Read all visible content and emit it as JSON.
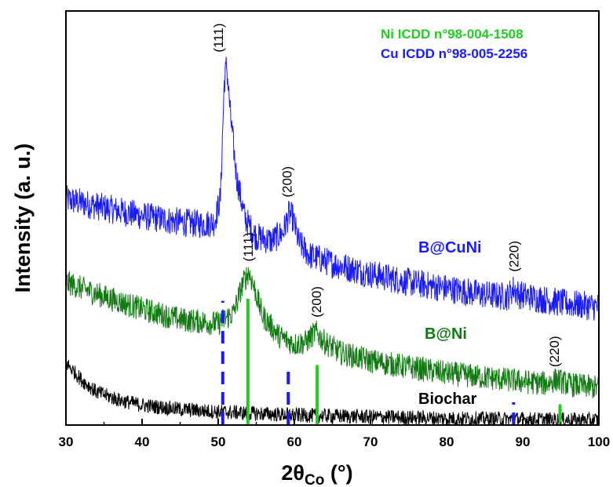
{
  "chart_data": {
    "type": "line",
    "xlabel_main": "2θ",
    "xlabel_sub": "Co",
    "xlabel_unit": " (°)",
    "ylabel": "Intensity (a. u.)",
    "xlim": [
      30,
      100
    ],
    "ylim": [
      0,
      1
    ],
    "x_ticks": [
      30,
      40,
      50,
      60,
      70,
      80,
      90,
      100
    ],
    "yticks_shown": false,
    "legend": [
      {
        "label": "Ni ICDD n°98-004-1508",
        "color": "#22cc22"
      },
      {
        "label": "Cu ICDD n°98-005-2256",
        "color": "#1a1aff"
      }
    ],
    "series": [
      {
        "name": "B@CuNi",
        "color": "#1a1aff",
        "noise": 0.035,
        "points": [
          [
            30,
            0.545
          ],
          [
            35,
            0.525
          ],
          [
            40,
            0.505
          ],
          [
            45,
            0.49
          ],
          [
            48,
            0.485
          ],
          [
            49.5,
            0.49
          ],
          [
            50.3,
            0.55
          ],
          [
            50.8,
            0.83
          ],
          [
            51.1,
            0.87
          ],
          [
            51.6,
            0.75
          ],
          [
            52.4,
            0.6
          ],
          [
            53.5,
            0.5
          ],
          [
            55,
            0.455
          ],
          [
            57,
            0.445
          ],
          [
            58.5,
            0.465
          ],
          [
            59.3,
            0.51
          ],
          [
            59.8,
            0.5
          ],
          [
            60.6,
            0.44
          ],
          [
            62,
            0.41
          ],
          [
            65,
            0.39
          ],
          [
            70,
            0.365
          ],
          [
            75,
            0.345
          ],
          [
            80,
            0.33
          ],
          [
            85,
            0.315
          ],
          [
            88,
            0.31
          ],
          [
            88.8,
            0.33
          ],
          [
            89.5,
            0.315
          ],
          [
            95,
            0.295
          ],
          [
            100,
            0.285
          ]
        ]
      },
      {
        "name": "B@Ni",
        "color": "#127a12",
        "noise": 0.03,
        "points": [
          [
            30,
            0.345
          ],
          [
            35,
            0.31
          ],
          [
            40,
            0.28
          ],
          [
            45,
            0.255
          ],
          [
            50,
            0.245
          ],
          [
            52,
            0.27
          ],
          [
            53.2,
            0.34
          ],
          [
            54,
            0.37
          ],
          [
            54.6,
            0.34
          ],
          [
            55.8,
            0.265
          ],
          [
            58,
            0.215
          ],
          [
            60,
            0.195
          ],
          [
            61.5,
            0.2
          ],
          [
            62.8,
            0.225
          ],
          [
            64,
            0.2
          ],
          [
            66,
            0.175
          ],
          [
            70,
            0.155
          ],
          [
            75,
            0.14
          ],
          [
            80,
            0.125
          ],
          [
            85,
            0.115
          ],
          [
            90,
            0.105
          ],
          [
            93,
            0.1
          ],
          [
            94.5,
            0.11
          ],
          [
            96,
            0.098
          ],
          [
            100,
            0.09
          ]
        ]
      },
      {
        "name": "Biochar",
        "color": "#000000",
        "noise": 0.018,
        "points": [
          [
            30,
            0.15
          ],
          [
            31,
            0.13
          ],
          [
            32,
            0.11
          ],
          [
            34,
            0.08
          ],
          [
            37,
            0.06
          ],
          [
            40,
            0.048
          ],
          [
            45,
            0.038
          ],
          [
            50,
            0.032
          ],
          [
            55,
            0.028
          ],
          [
            60,
            0.024
          ],
          [
            70,
            0.02
          ],
          [
            80,
            0.016
          ],
          [
            90,
            0.014
          ],
          [
            100,
            0.012
          ]
        ]
      }
    ],
    "series_labels": [
      {
        "text": "B@CuNi",
        "color": "#1a1aff"
      },
      {
        "text": "B@Ni",
        "color": "#127a12"
      },
      {
        "text": "Biochar",
        "color": "#000000"
      }
    ],
    "reference_lines": [
      {
        "phase": "Cu",
        "x": 50.6,
        "height": 0.3,
        "color": "#1a1aff",
        "dash": true
      },
      {
        "phase": "Cu",
        "x": 59.2,
        "height": 0.14,
        "color": "#1a1aff",
        "dash": true
      },
      {
        "phase": "Cu",
        "x": 88.8,
        "height": 0.055,
        "color": "#1a1aff",
        "dash": true
      },
      {
        "phase": "Ni",
        "x": 53.9,
        "height": 0.305,
        "color": "#22cc22",
        "dash": false
      },
      {
        "phase": "Ni",
        "x": 63.0,
        "height": 0.145,
        "color": "#22cc22",
        "dash": false
      },
      {
        "phase": "Ni",
        "x": 94.9,
        "height": 0.05,
        "color": "#22cc22",
        "dash": false
      }
    ],
    "peak_labels": [
      {
        "text": "(111)",
        "x": 50.0,
        "y": 0.9
      },
      {
        "text": "(200)",
        "x": 59.0,
        "y": 0.55
      },
      {
        "text": "(220)",
        "x": 88.8,
        "y": 0.37
      },
      {
        "text": "(111)",
        "x": 53.9,
        "y": 0.395
      },
      {
        "text": "(200)",
        "x": 62.9,
        "y": 0.26
      },
      {
        "text": "(220)",
        "x": 94.1,
        "y": 0.14
      }
    ]
  }
}
